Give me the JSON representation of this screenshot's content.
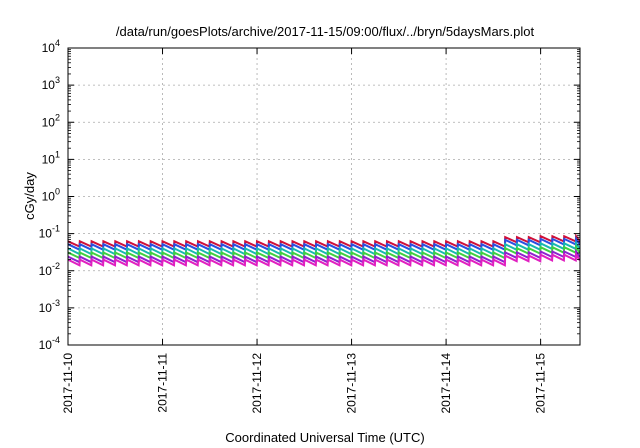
{
  "chart_data": {
    "type": "line",
    "title": "/data/run/goesPlots/archive/2017-11-15/09:00/flux/../bryn/5daysMars.plot",
    "xlabel": "Coordinated Universal Time (UTC)",
    "ylabel": "cGy/day",
    "yscale": "log",
    "ylim": [
      0.0001,
      10000
    ],
    "y_ticks": [
      {
        "base": "10",
        "exp": "-4",
        "value": 0.0001
      },
      {
        "base": "10",
        "exp": "-3",
        "value": 0.001
      },
      {
        "base": "10",
        "exp": "-2",
        "value": 0.01
      },
      {
        "base": "10",
        "exp": "-1",
        "value": 0.1
      },
      {
        "base": "10",
        "exp": "0",
        "value": 1
      },
      {
        "base": "10",
        "exp": "1",
        "value": 10
      },
      {
        "base": "10",
        "exp": "2",
        "value": 100
      },
      {
        "base": "10",
        "exp": "3",
        "value": 1000
      },
      {
        "base": "10",
        "exp": "4",
        "value": 10000
      }
    ],
    "xlim": [
      "2017-11-10T00:00",
      "2017-11-15T10:00"
    ],
    "x_ticks": [
      "2017-11-10",
      "2017-11-11",
      "2017-11-12",
      "2017-11-13",
      "2017-11-14",
      "2017-11-15"
    ],
    "grid": true,
    "sawtooth_period_hours": 3,
    "series": [
      {
        "color": "#d0103a",
        "peak": 0.062,
        "trough": 0.045,
        "end_peak": 0.085
      },
      {
        "color": "#2a4fe0",
        "peak": 0.052,
        "trough": 0.037,
        "end_peak": 0.072
      },
      {
        "color": "#18b8b0",
        "peak": 0.04,
        "trough": 0.028,
        "end_peak": 0.055
      },
      {
        "color": "#40d040",
        "peak": 0.031,
        "trough": 0.022,
        "end_peak": 0.043
      },
      {
        "color": "#9020d0",
        "peak": 0.024,
        "trough": 0.017,
        "end_peak": 0.033
      },
      {
        "color": "#e020c0",
        "peak": 0.02,
        "trough": 0.014,
        "end_peak": 0.027
      }
    ]
  }
}
